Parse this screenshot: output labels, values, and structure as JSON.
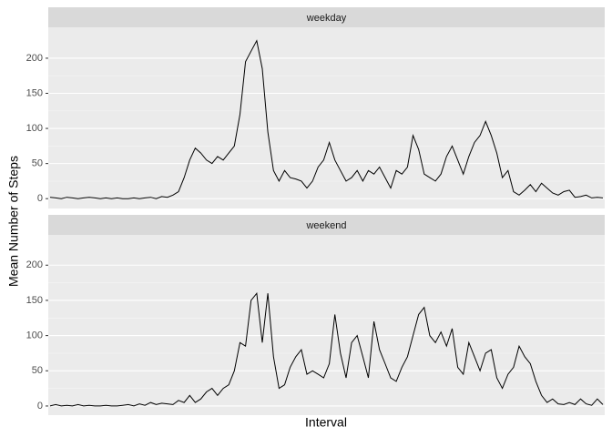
{
  "chart_data": {
    "type": "line",
    "x_label": "Interval",
    "y_label": "Mean Number of Steps",
    "color": "#000000",
    "yticks": [
      0,
      50,
      100,
      150,
      200
    ],
    "panels": [
      {
        "title": "weekday",
        "ylim": [
          -14,
          244
        ],
        "values": [
          2,
          1,
          0,
          2,
          1,
          0,
          1,
          2,
          1,
          0,
          1,
          0,
          1,
          0,
          0,
          1,
          0,
          1,
          2,
          0,
          3,
          2,
          5,
          10,
          30,
          55,
          72,
          65,
          55,
          50,
          60,
          55,
          65,
          75,
          120,
          195,
          210,
          225,
          185,
          95,
          40,
          25,
          40,
          30,
          28,
          25,
          15,
          25,
          45,
          55,
          80,
          55,
          40,
          25,
          30,
          40,
          25,
          40,
          35,
          45,
          30,
          15,
          40,
          35,
          45,
          90,
          70,
          35,
          30,
          25,
          35,
          60,
          75,
          55,
          35,
          60,
          80,
          90,
          110,
          90,
          65,
          30,
          40,
          10,
          5,
          12,
          20,
          10,
          22,
          15,
          8,
          5,
          10,
          12,
          2,
          3,
          5,
          1,
          2,
          1
        ]
      },
      {
        "title": "weekend",
        "ylim": [
          -13,
          243
        ],
        "values": [
          0,
          2,
          0,
          1,
          0,
          2,
          0,
          1,
          0,
          0,
          1,
          0,
          0,
          1,
          2,
          0,
          3,
          1,
          5,
          2,
          4,
          3,
          2,
          8,
          5,
          15,
          5,
          10,
          20,
          25,
          15,
          25,
          30,
          50,
          90,
          85,
          150,
          160,
          90,
          160,
          70,
          25,
          30,
          55,
          70,
          80,
          45,
          50,
          45,
          40,
          60,
          130,
          75,
          40,
          90,
          100,
          70,
          40,
          120,
          80,
          60,
          40,
          35,
          55,
          70,
          100,
          130,
          140,
          100,
          90,
          105,
          85,
          110,
          55,
          45,
          90,
          70,
          50,
          75,
          80,
          40,
          25,
          45,
          55,
          85,
          70,
          60,
          35,
          15,
          5,
          10,
          3,
          2,
          5,
          2,
          10,
          3,
          1,
          10,
          2
        ]
      }
    ]
  }
}
